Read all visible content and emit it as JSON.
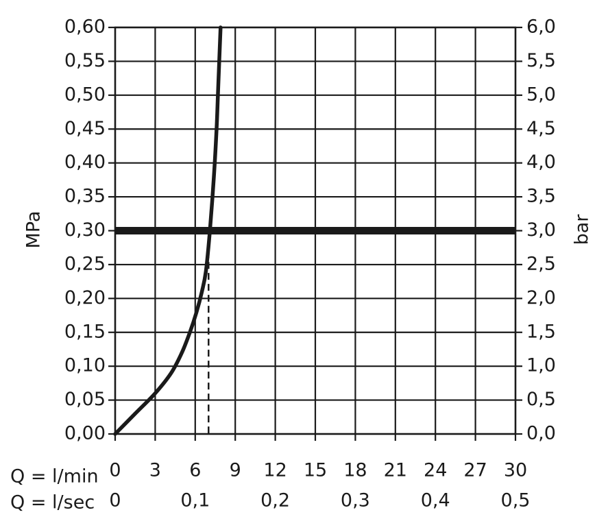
{
  "chart_data": {
    "type": "line",
    "title": "",
    "ylabel_left": "MPa",
    "ylabel_right": "bar",
    "xlabel_min": "Q = l/min",
    "xlabel_sec": "Q = l/sec",
    "xlim": [
      0,
      30
    ],
    "ylim": [
      0,
      0.6
    ],
    "grid": true,
    "x_ticks_min": [
      "0",
      "3",
      "6",
      "9",
      "12",
      "15",
      "18",
      "21",
      "24",
      "27",
      "30"
    ],
    "x_ticks_sec": [
      {
        "x": 0,
        "label": "0"
      },
      {
        "x": 6,
        "label": "0,1"
      },
      {
        "x": 12,
        "label": "0,2"
      },
      {
        "x": 18,
        "label": "0,3"
      },
      {
        "x": 24,
        "label": "0,4"
      },
      {
        "x": 30,
        "label": "0,5"
      }
    ],
    "y_ticks_left": [
      "0,00",
      "0,05",
      "0,10",
      "0,15",
      "0,20",
      "0,25",
      "0,30",
      "0,35",
      "0,40",
      "0,45",
      "0,50",
      "0,55",
      "0,60"
    ],
    "y_ticks_right": [
      "0,0",
      "0,5",
      "1,0",
      "1,5",
      "2,0",
      "2,5",
      "3,0",
      "3,5",
      "4,0",
      "4,5",
      "5,0",
      "5,5",
      "6,0"
    ],
    "series": [
      {
        "x": [
          0,
          1.5,
          3,
          4.2,
          5,
          5.6,
          6.1,
          6.5,
          6.8,
          7.1,
          7.4,
          7.6,
          7.7,
          7.8,
          7.9
        ],
        "y": [
          0,
          0.03,
          0.06,
          0.09,
          0.12,
          0.15,
          0.18,
          0.21,
          0.24,
          0.3,
          0.38,
          0.45,
          0.5,
          0.55,
          0.6
        ]
      }
    ],
    "reference_line": {
      "y": 0.3
    },
    "reference_drop": {
      "x": 7,
      "y_from": 0.27,
      "y_to": 0
    }
  }
}
